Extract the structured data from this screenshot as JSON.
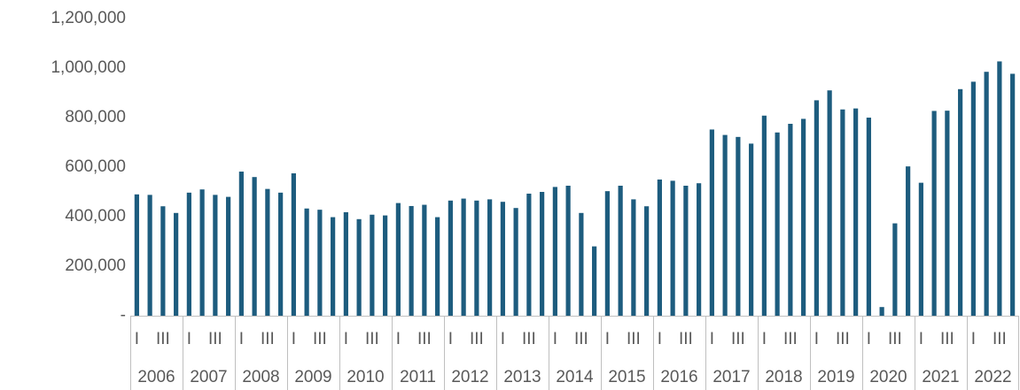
{
  "chart_data": {
    "type": "bar",
    "categories": [
      "I",
      null,
      "III",
      null,
      "I",
      null,
      "III",
      null,
      "I",
      null,
      "III",
      null,
      "I",
      null,
      "III",
      null,
      "I",
      null,
      "III",
      null,
      "I",
      null,
      "III",
      null,
      "I",
      null,
      "III",
      null,
      "I",
      null,
      "III",
      null,
      "I",
      null,
      "III",
      null,
      "I",
      null,
      "III",
      null,
      "I",
      null,
      "III",
      null,
      "I",
      null,
      "III",
      null,
      "I",
      null,
      "III",
      null,
      "I",
      null,
      "III",
      null,
      "I",
      null,
      "III",
      null,
      "I",
      null,
      "III",
      null,
      "I",
      null,
      "III",
      null
    ],
    "category_groups": [
      "2006",
      "2007",
      "2008",
      "2009",
      "2010",
      "2011",
      "2012",
      "2013",
      "2014",
      "2015",
      "2016",
      "2017",
      "2018",
      "2019",
      "2020",
      "2021",
      "2022"
    ],
    "values": [
      490000,
      488000,
      442000,
      415000,
      497000,
      510000,
      488000,
      480000,
      582000,
      560000,
      512000,
      497000,
      575000,
      433000,
      428000,
      398000,
      418000,
      390000,
      408000,
      405000,
      455000,
      443000,
      448000,
      398000,
      465000,
      473000,
      465000,
      470000,
      460000,
      435000,
      493000,
      500000,
      520000,
      525000,
      415000,
      280000,
      503000,
      525000,
      470000,
      442000,
      550000,
      545000,
      525000,
      535000,
      752000,
      730000,
      722000,
      695000,
      808000,
      740000,
      775000,
      795000,
      870000,
      910000,
      833000,
      837000,
      800000,
      35000,
      373000,
      603000,
      537000,
      827000,
      828000,
      915000,
      945000,
      985000,
      1027000,
      977000
    ],
    "color": "#1d5c7e",
    "ylim": [
      0,
      1200000
    ],
    "yticks": [
      {
        "value": 0,
        "label": "-"
      },
      {
        "value": 200000,
        "label": "200,000"
      },
      {
        "value": 400000,
        "label": "400,000"
      },
      {
        "value": 600000,
        "label": "600,000"
      },
      {
        "value": 800000,
        "label": "800,000"
      },
      {
        "value": 1000000,
        "label": "1,000,000"
      },
      {
        "value": 1200000,
        "label": "1,200,000"
      }
    ],
    "grid": false
  }
}
